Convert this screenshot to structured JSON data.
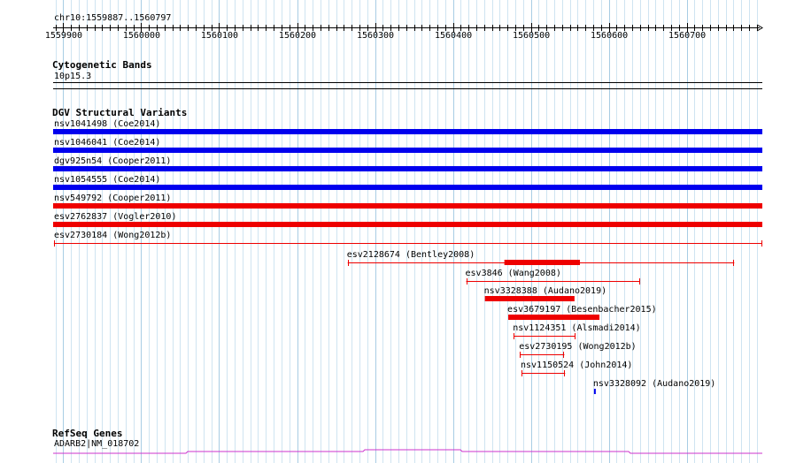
{
  "ruler": {
    "range_label": "chr10:1559887..1560797",
    "start": 1559887,
    "end": 1560797,
    "tick_labels": [
      "1559900",
      "1560000",
      "1560100",
      "1560200",
      "1560300",
      "1560400",
      "1560500",
      "1560600",
      "1560700"
    ]
  },
  "tracks": {
    "cytobands": {
      "title": "Cytogenetic Bands",
      "band_label": "10p15.3"
    },
    "dgv": {
      "title": "DGV Structural Variants",
      "features": [
        {
          "label": "nsv1041498 (Coe2014)",
          "color": "#0000ee",
          "start": 1559887,
          "end": 1560797,
          "thick": true
        },
        {
          "label": "nsv1046041 (Coe2014)",
          "color": "#0000ee",
          "start": 1559887,
          "end": 1560797,
          "thick": true
        },
        {
          "label": "dgv925n54 (Cooper2011)",
          "color": "#0000ee",
          "start": 1559887,
          "end": 1560797,
          "thick": true
        },
        {
          "label": "nsv1054555 (Coe2014)",
          "color": "#0000ee",
          "start": 1559887,
          "end": 1560797,
          "thick": true
        },
        {
          "label": "nsv549792 (Cooper2011)",
          "color": "#ee0000",
          "start": 1559887,
          "end": 1560797,
          "thick": true
        },
        {
          "label": "esv2762837 (Vogler2010)",
          "color": "#ee0000",
          "start": 1559887,
          "end": 1560797,
          "thick": true
        },
        {
          "label": "esv2730184 (Wong2012b)",
          "color": "#ee0000",
          "start": 1559888,
          "end": 1560797,
          "thick": false
        },
        {
          "label": "esv2128674 (Bentley2008)",
          "color": "#ee0000",
          "start": 1560265,
          "end": 1560761,
          "thick": false,
          "thick_start": 1560466,
          "thick_end": 1560563
        },
        {
          "label": "esv3846 (Wang2008)",
          "color": "#ee0000",
          "start": 1560417,
          "end": 1560640,
          "thick": false
        },
        {
          "label": "nsv3328388 (Audano2019)",
          "color": "#ee0000",
          "start": 1560441,
          "end": 1560556,
          "thick": true
        },
        {
          "label": "esv3679197 (Besenbacher2015)",
          "color": "#ee0000",
          "start": 1560471,
          "end": 1560588,
          "thick": true
        },
        {
          "label": "nsv1124351 (Alsmadi2014)",
          "color": "#ee0000",
          "start": 1560478,
          "end": 1560557,
          "thick": false
        },
        {
          "label": "esv2730195 (Wong2012b)",
          "color": "#ee0000",
          "start": 1560486,
          "end": 1560543,
          "thick": false
        },
        {
          "label": "nsv1150524 (John2014)",
          "color": "#ee0000",
          "start": 1560488,
          "end": 1560544,
          "thick": false
        },
        {
          "label": "nsv3328092 (Audano2019)",
          "color": "#0000ee",
          "start": 1560581,
          "end": 1560583,
          "thick": true
        }
      ]
    },
    "refseq": {
      "title": "RefSeq Genes",
      "gene_label": "ADARB2|NM_018702",
      "color": "#cc33cc"
    }
  }
}
